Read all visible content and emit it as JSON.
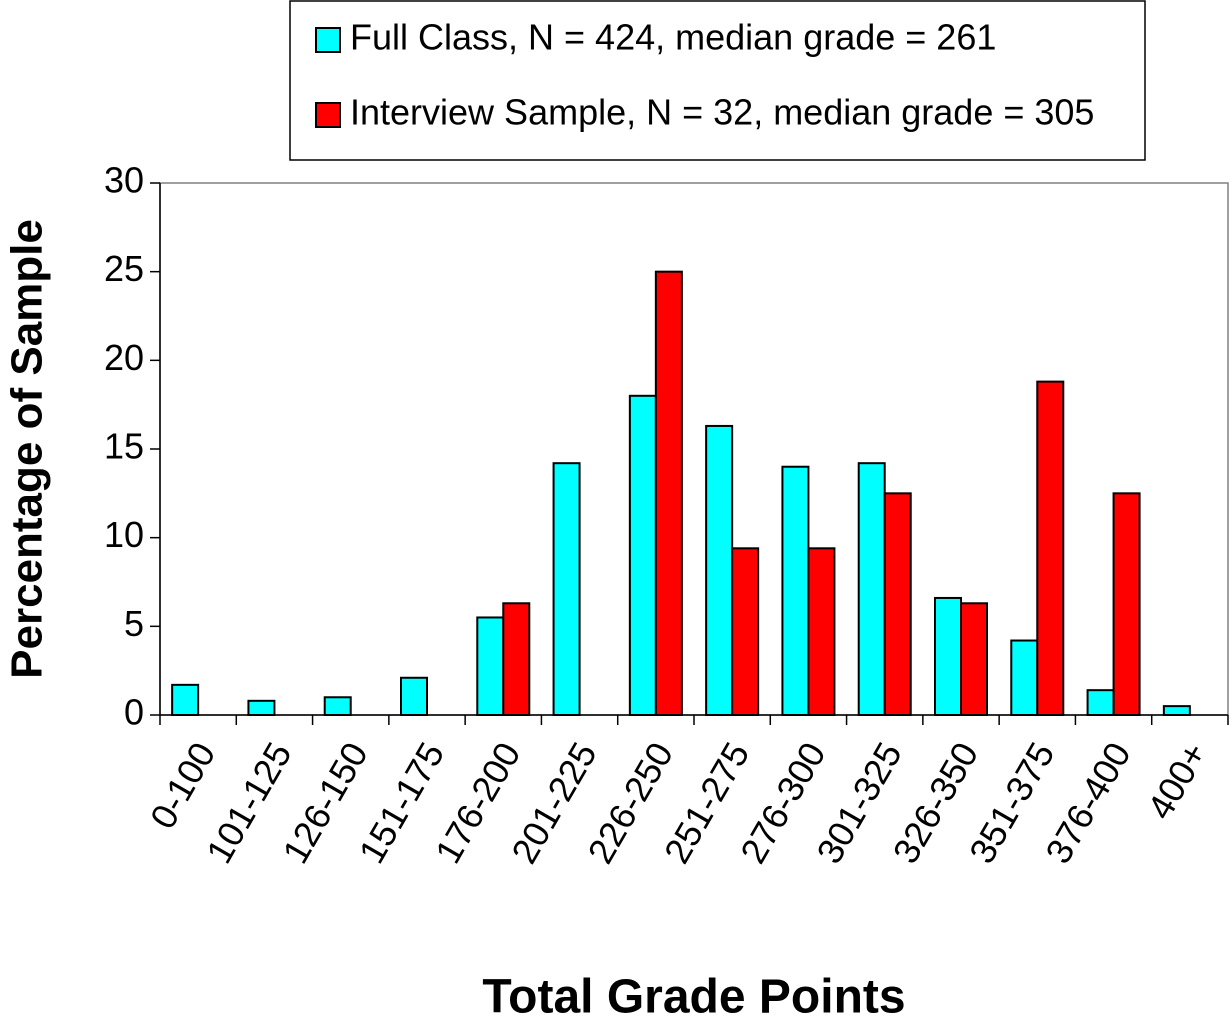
{
  "chart_data": {
    "type": "bar",
    "xlabel": "Total Grade Points",
    "ylabel": "Percentage of Sample",
    "categories": [
      "0-100",
      "101-125",
      "126-150",
      "151-175",
      "176-200",
      "201-225",
      "226-250",
      "251-275",
      "276-300",
      "301-325",
      "326-350",
      "351-375",
      "376-400",
      "400+"
    ],
    "series": [
      {
        "name": "Full Class, N = 424, median grade = 261",
        "color": "#00ffff",
        "values": [
          1.7,
          0.8,
          1.0,
          2.1,
          5.5,
          14.2,
          18.0,
          16.3,
          14.0,
          14.2,
          6.6,
          4.2,
          1.4,
          0.5
        ]
      },
      {
        "name": "Interview Sample, N = 32, median grade = 305",
        "color": "#ff0000",
        "values": [
          0,
          0,
          0,
          0,
          6.3,
          0,
          25.0,
          9.4,
          9.4,
          12.5,
          6.3,
          18.8,
          12.5,
          0
        ]
      }
    ],
    "ylim": [
      0,
      30
    ],
    "yticks": [
      0,
      5,
      10,
      15,
      20,
      25,
      30
    ],
    "grid": false
  }
}
